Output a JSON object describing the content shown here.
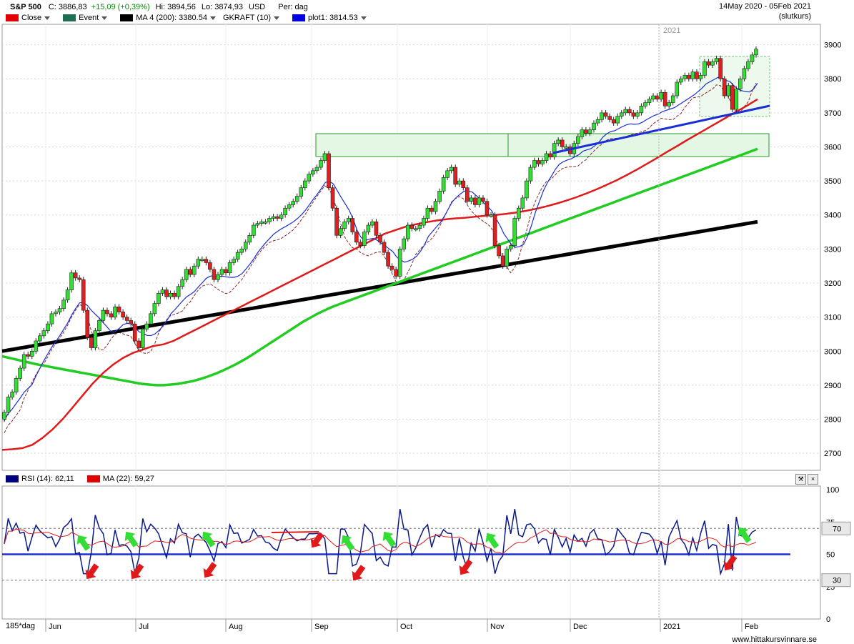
{
  "header": {
    "symbol": "S&P 500",
    "close_label": "C:",
    "close_value": "3886,83",
    "change": "+15,09 (+0,39%)",
    "hi": "Hi: 3894,56",
    "lo": "Lo: 3874,93",
    "currency": "USD",
    "period": "Per: dag",
    "date_range": "14May 2020 - 05Feb 2021",
    "slutkurs": "(slutkurs)",
    "legend": [
      {
        "label": "Close",
        "color": "#e00000"
      },
      {
        "label": "Event",
        "color": "#1e6e50"
      },
      {
        "label": "MA 4 (200): 3380.54",
        "color": "#000000"
      },
      {
        "label": "GKRAFT (10)",
        "color": ""
      },
      {
        "label": "plot1: 3814.53",
        "color": "#0000e0"
      }
    ]
  },
  "rsi_header": {
    "rsi_label": "RSI (14): 62,11",
    "rsi_color": "#000080",
    "ma_label": "MA (22): 59,27",
    "ma_color": "#e00000"
  },
  "year_marker": "2021",
  "period_label": "185*dag",
  "footer": "www.hittakursvinnare.se",
  "chart_data": {
    "type": "candlestick",
    "x_months": [
      "Jun",
      "Jul",
      "Aug",
      "Sep",
      "Oct",
      "Nov",
      "Dec",
      "2021",
      "Feb"
    ],
    "yticks": [
      2700,
      2800,
      2900,
      3000,
      3100,
      3200,
      3300,
      3400,
      3500,
      3600,
      3700,
      3800,
      3900
    ],
    "ylim": [
      2650,
      3960
    ],
    "closes": [
      2820,
      2865,
      2880,
      2920,
      2950,
      2990,
      2985,
      3000,
      3030,
      3045,
      3060,
      3080,
      3110,
      3115,
      3125,
      3150,
      3180,
      3230,
      3215,
      3210,
      3120,
      3040,
      3010,
      3060,
      3090,
      3120,
      3110,
      3100,
      3130,
      3115,
      3100,
      3090,
      3080,
      3030,
      3010,
      3065,
      3080,
      3110,
      3140,
      3170,
      3180,
      3160,
      3170,
      3160,
      3190,
      3210,
      3240,
      3225,
      3250,
      3270,
      3270,
      3260,
      3240,
      3210,
      3225,
      3240,
      3230,
      3260,
      3270,
      3290,
      3300,
      3320,
      3340,
      3370,
      3375,
      3380,
      3380,
      3390,
      3395,
      3390,
      3400,
      3420,
      3430,
      3440,
      3455,
      3480,
      3500,
      3520,
      3530,
      3540,
      3560,
      3580,
      3480,
      3420,
      3340,
      3360,
      3380,
      3390,
      3350,
      3320,
      3310,
      3350,
      3370,
      3380,
      3340,
      3320,
      3290,
      3250,
      3240,
      3220,
      3300,
      3330,
      3370,
      3360,
      3360,
      3370,
      3390,
      3420,
      3410,
      3440,
      3470,
      3510,
      3530,
      3540,
      3490,
      3500,
      3480,
      3440,
      3450,
      3430,
      3450,
      3440,
      3400,
      3400,
      3310,
      3280,
      3250,
      3300,
      3310,
      3390,
      3420,
      3450,
      3500,
      3540,
      3560,
      3550,
      3560,
      3580,
      3570,
      3610,
      3620,
      3600,
      3600,
      3580,
      3610,
      3630,
      3650,
      3640,
      3650,
      3670,
      3680,
      3700,
      3690,
      3680,
      3670,
      3690,
      3700,
      3710,
      3700,
      3690,
      3700,
      3720,
      3730,
      3740,
      3750,
      3740,
      3760,
      3720,
      3730,
      3750,
      3790,
      3800,
      3810,
      3800,
      3820,
      3800,
      3810,
      3850,
      3840,
      3850,
      3860,
      3800,
      3750,
      3780,
      3710,
      3770,
      3800,
      3830,
      3850,
      3870,
      3887
    ],
    "ma_200": [
      3000,
      3002,
      3004,
      3006,
      3008,
      3010,
      3012,
      3014,
      3016,
      3018,
      3020,
      3022,
      3024,
      3026,
      3028,
      3030,
      3032,
      3034,
      3036,
      3038,
      3040,
      3042,
      3044,
      3046,
      3048,
      3050,
      3052,
      3054,
      3056,
      3058,
      3060,
      3062,
      3064,
      3066,
      3068,
      3070,
      3072,
      3074,
      3076,
      3078,
      3080,
      3082,
      3084,
      3086,
      3088,
      3090,
      3092,
      3094,
      3096,
      3098,
      3100,
      3102,
      3104,
      3106,
      3108,
      3110,
      3112,
      3114,
      3116,
      3118,
      3120,
      3122,
      3124,
      3126,
      3128,
      3130,
      3132,
      3134,
      3136,
      3138,
      3140,
      3142,
      3144,
      3146,
      3148,
      3150,
      3152,
      3154,
      3156,
      3158,
      3160,
      3162,
      3164,
      3166,
      3168,
      3170,
      3172,
      3174,
      3176,
      3178,
      3180,
      3182,
      3184,
      3186,
      3188,
      3190,
      3192,
      3194,
      3196,
      3198,
      3200,
      3202,
      3204,
      3206,
      3208,
      3210,
      3212,
      3214,
      3216,
      3218,
      3220,
      3222,
      3224,
      3226,
      3228,
      3230,
      3232,
      3234,
      3236,
      3238,
      3240,
      3242,
      3244,
      3246,
      3248,
      3250,
      3252,
      3254,
      3256,
      3258,
      3260,
      3262,
      3264,
      3266,
      3268,
      3270,
      3272,
      3274,
      3276,
      3278,
      3280,
      3282,
      3284,
      3286,
      3288,
      3290,
      3292,
      3294,
      3296,
      3298,
      3300,
      3302,
      3304,
      3306,
      3308,
      3310,
      3312,
      3314,
      3316,
      3318,
      3320,
      3322,
      3324,
      3326,
      3328,
      3330,
      3332,
      3334,
      3336,
      3338,
      3340,
      3342,
      3344,
      3346,
      3348,
      3350,
      3352,
      3354,
      3356,
      3358,
      3360,
      3362,
      3364,
      3366,
      3368,
      3370,
      3372,
      3374,
      3376,
      3378,
      3380
    ],
    "ma_green": [
      2985,
      2980,
      2975,
      2970,
      2965,
      2960,
      2956,
      2952,
      2948,
      2944,
      2940,
      2936,
      2932,
      2928,
      2924,
      2920,
      2916,
      2912,
      2908,
      2904,
      2902,
      2900,
      2900,
      2902,
      2904,
      2908,
      2912,
      2918,
      2925,
      2933,
      2942,
      2952,
      2963,
      2975,
      2988,
      3002,
      3016,
      3030,
      3044,
      3058,
      3072,
      3086,
      3098,
      3110,
      3120,
      3130,
      3138,
      3146,
      3154,
      3162,
      3170,
      3178,
      3186,
      3194,
      3202,
      3210,
      3218,
      3226,
      3234,
      3242,
      3250,
      3258,
      3266,
      3274,
      3282,
      3290,
      3298,
      3306,
      3314,
      3322,
      3330,
      3338,
      3346,
      3354,
      3362,
      3370,
      3378,
      3386,
      3394,
      3402,
      3410,
      3418,
      3426,
      3434,
      3442,
      3450,
      3458,
      3466,
      3474,
      3482,
      3490,
      3498,
      3506,
      3514,
      3522,
      3530,
      3538,
      3546,
      3554,
      3562,
      3570,
      3578,
      3586,
      3594
    ],
    "ma_red": [
      2710,
      2712,
      2715,
      2725,
      2745,
      2770,
      2800,
      2835,
      2870,
      2905,
      2935,
      2960,
      2980,
      2995,
      3005,
      3015,
      3020,
      3030,
      3045,
      3060,
      3075,
      3090,
      3105,
      3120,
      3135,
      3150,
      3165,
      3180,
      3195,
      3210,
      3225,
      3240,
      3255,
      3270,
      3285,
      3300,
      3315,
      3330,
      3345,
      3355,
      3365,
      3372,
      3378,
      3383,
      3387,
      3390,
      3392,
      3395,
      3398,
      3400,
      3403,
      3407,
      3412,
      3418,
      3425,
      3433,
      3442,
      3452,
      3463,
      3475,
      3488,
      3502,
      3517,
      3533,
      3550,
      3567,
      3585,
      3602,
      3620,
      3637,
      3654,
      3671,
      3688,
      3705,
      3722,
      3740
    ],
    "rsi_ylim": [
      0,
      100
    ],
    "rsi_levels": [
      30,
      50,
      70
    ],
    "rsi_ticks": [
      0,
      25,
      50,
      75,
      100
    ]
  }
}
